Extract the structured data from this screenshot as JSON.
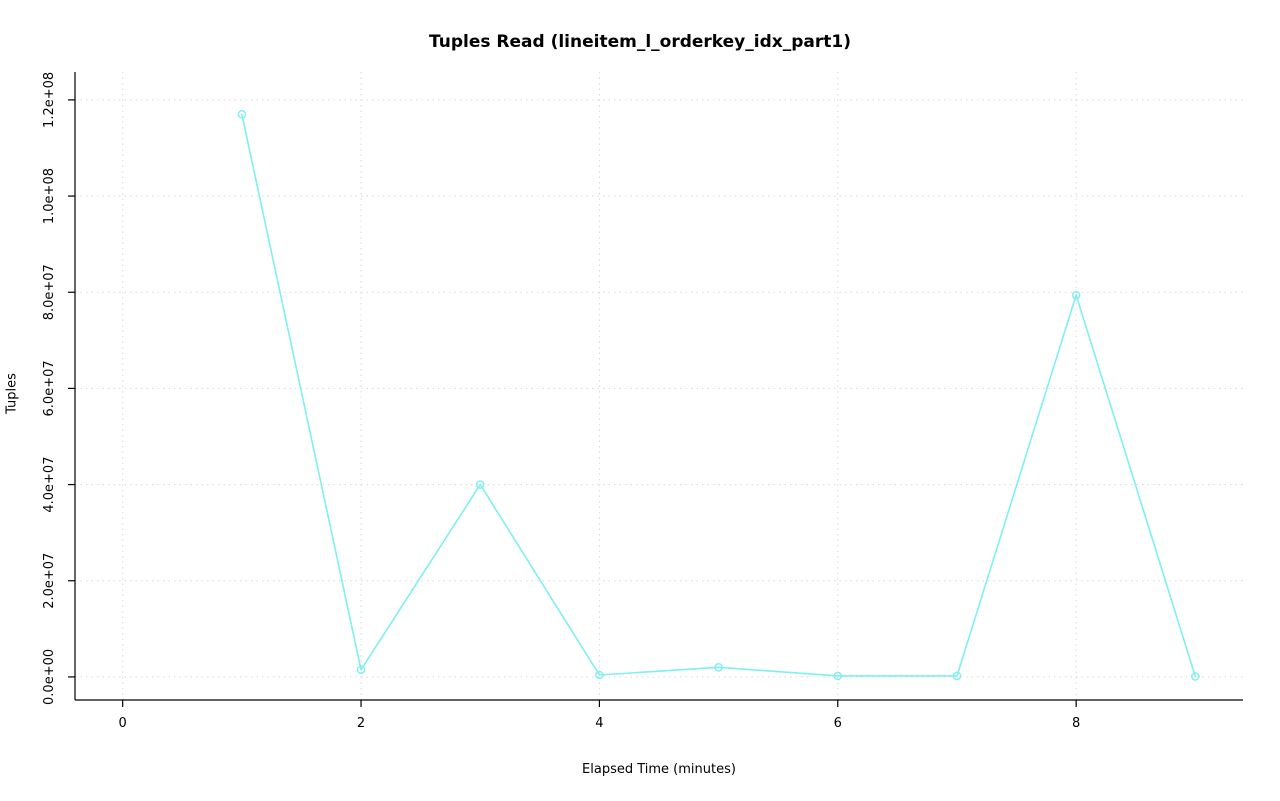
{
  "chart_data": {
    "type": "line",
    "title": "Tuples Read (lineitem_l_orderkey_idx_part1)",
    "xlabel": "Elapsed Time (minutes)",
    "ylabel": "Tuples",
    "x": [
      1,
      2,
      3,
      4,
      5,
      6,
      7,
      8,
      9
    ],
    "y": [
      117000000,
      1500000,
      40000000,
      400000,
      2000000,
      200000,
      200000,
      79400000,
      100000
    ],
    "x_ticks": [
      0,
      2,
      4,
      6,
      8
    ],
    "x_tick_labels": [
      "0",
      "2",
      "4",
      "6",
      "8"
    ],
    "y_ticks": [
      0,
      20000000,
      40000000,
      60000000,
      80000000,
      100000000,
      120000000
    ],
    "y_tick_labels": [
      "0.0e+00",
      "2.0e+07",
      "4.0e+07",
      "6.0e+07",
      "8.0e+07",
      "1.0e+08",
      "1.2e+08"
    ],
    "xlim": [
      -0.4,
      9.4
    ],
    "ylim": [
      -4800000,
      125800000
    ],
    "grid": true,
    "legend_position": "none",
    "marker": "open-circle",
    "colors": {
      "line": "#7FEFEF",
      "grid": "#D8D8D8",
      "axis": "#000000",
      "background": "#FFFFFF"
    }
  }
}
